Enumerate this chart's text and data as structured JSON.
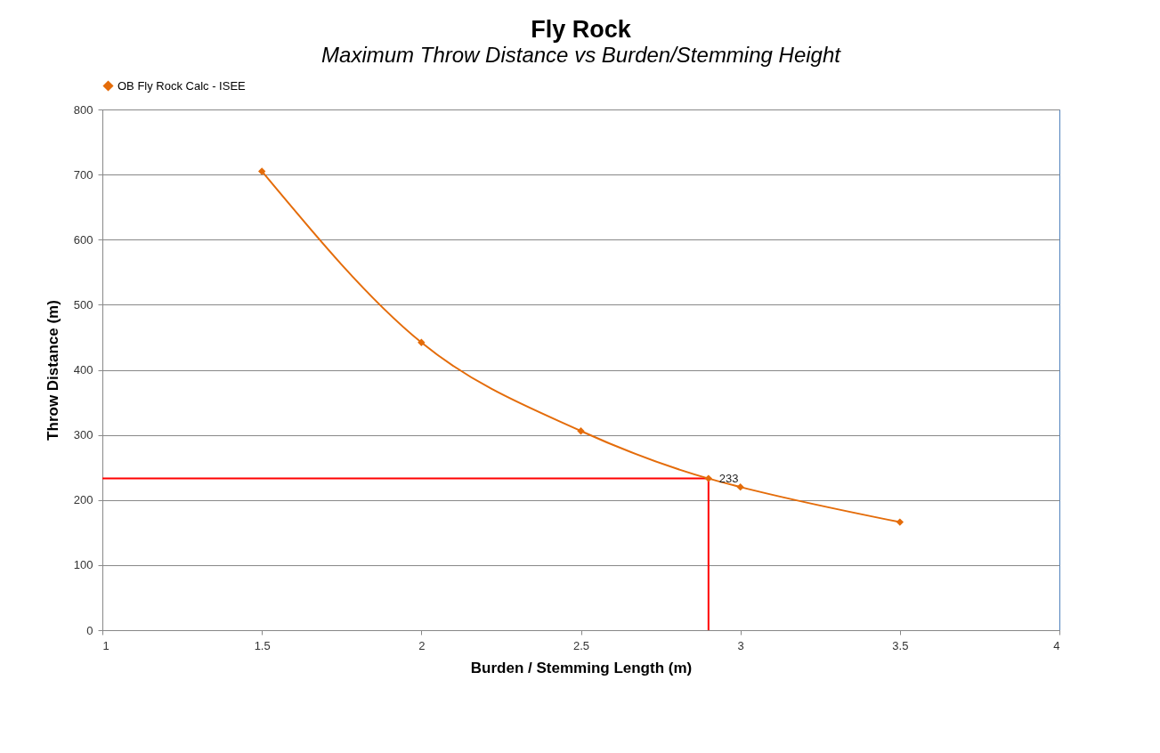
{
  "chart_data": {
    "type": "line",
    "title": "Fly Rock",
    "subtitle": "Maximum Throw Distance vs Burden/Stemming Height",
    "xlabel": "Burden  / Stemming Length (m)",
    "ylabel": "Throw Distance (m)",
    "xlim": [
      1,
      4
    ],
    "xticks": [
      1,
      1.5,
      2,
      2.5,
      3,
      3.5,
      4
    ],
    "ylim": [
      0,
      800
    ],
    "yticks": [
      0,
      100,
      200,
      300,
      400,
      500,
      600,
      700,
      800
    ],
    "grid": "y",
    "legend": "top",
    "marker": "diamond",
    "line_style": "solid",
    "series": [
      {
        "name": "OB Fly Rock Calc - ISEE",
        "color": "#e46c0a",
        "x": [
          1.5,
          2,
          2.5,
          2.9,
          3,
          3.5
        ],
        "values": [
          705,
          442,
          306,
          233,
          220,
          166
        ]
      },
      {
        "type": "line",
        "color": "#ff0000",
        "marker": "none",
        "x": [
          1,
          2.9,
          2.9
        ],
        "values": [
          233,
          233,
          0
        ]
      }
    ],
    "annotations": [
      {
        "text": "233",
        "x": 2.9,
        "y": 233
      }
    ]
  }
}
